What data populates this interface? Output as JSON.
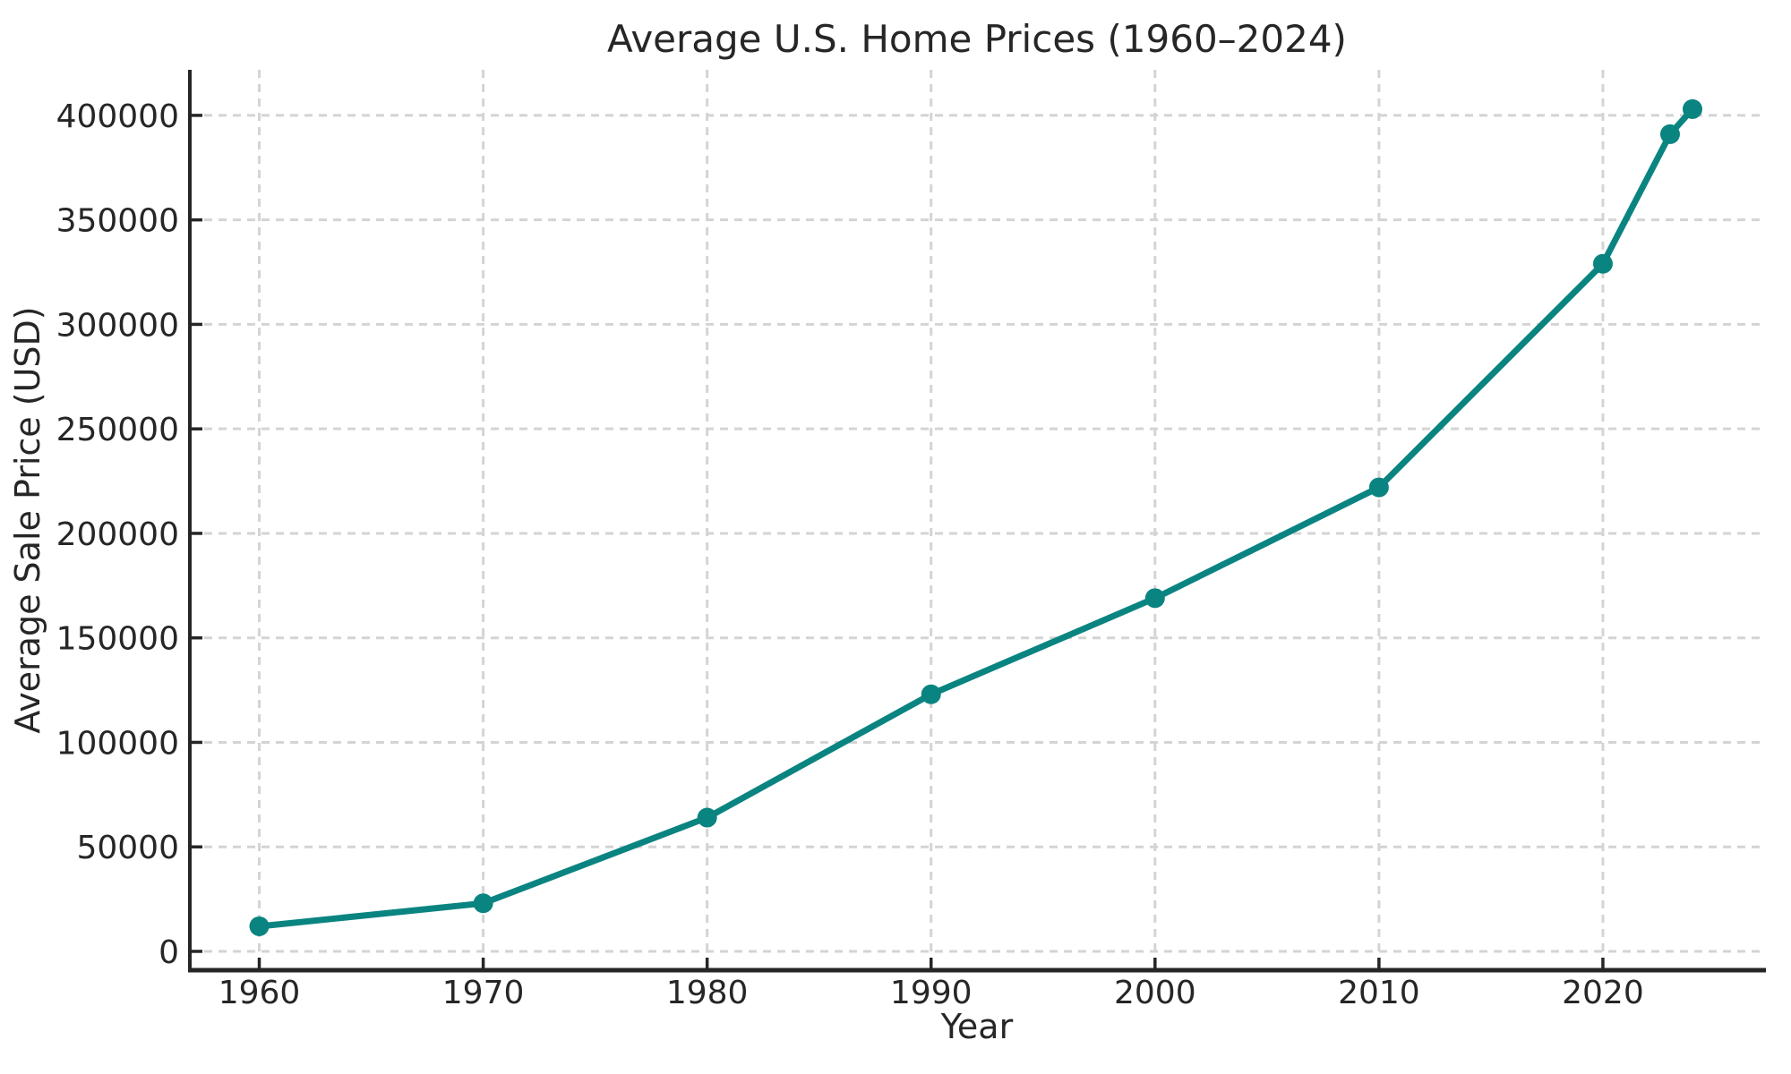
{
  "chart_data": {
    "type": "line",
    "title": "Average U.S. Home Prices (1960–2024)",
    "xlabel": "Year",
    "ylabel": "Average Sale Price (USD)",
    "series": [
      {
        "name": "Average sale price",
        "x": [
          1960,
          1970,
          1980,
          1990,
          2000,
          2010,
          2020,
          2023,
          2024
        ],
        "values": [
          12000,
          23000,
          64000,
          123000,
          169000,
          222000,
          329000,
          391000,
          403000
        ]
      }
    ],
    "x_ticks": [
      1960,
      1970,
      1980,
      1990,
      2000,
      2010,
      2020
    ],
    "y_ticks": [
      0,
      50000,
      100000,
      150000,
      200000,
      250000,
      300000,
      350000,
      400000
    ],
    "xlim": [
      1956.9,
      2027.2
    ],
    "ylim": [
      -9000,
      421800
    ],
    "grid": true,
    "grid_style": "dashed",
    "legend": "none",
    "marker": "circle",
    "colors": {
      "line": "#0a8481",
      "marker": "#0a8481",
      "grid": "#d4d4d4",
      "spine": "#262626",
      "text": "#262626",
      "background": "#ffffff"
    }
  }
}
